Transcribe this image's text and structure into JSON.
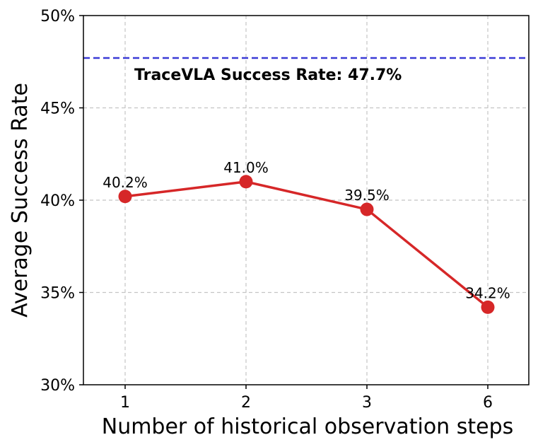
{
  "chart_data": {
    "type": "line",
    "title": "",
    "xlabel": "Number of historical observation steps",
    "ylabel": "Average Success Rate",
    "categories": [
      "1",
      "2",
      "3",
      "6"
    ],
    "series": [
      {
        "name": "Success Rate",
        "values": [
          40.2,
          41.0,
          39.5,
          34.2
        ],
        "labels": [
          "40.2%",
          "41.0%",
          "39.5%",
          "34.2%"
        ],
        "color": "#d62728"
      }
    ],
    "reference_line": {
      "value": 47.7,
      "label": "TraceVLA Success Rate: 47.7%",
      "color": "#3a3ad6",
      "style": "dashed"
    },
    "ylim": [
      30,
      50
    ],
    "yticks": [
      30,
      35,
      40,
      45,
      50
    ],
    "ytick_labels": [
      "30%",
      "35%",
      "40%",
      "45%",
      "50%"
    ],
    "grid": true
  }
}
